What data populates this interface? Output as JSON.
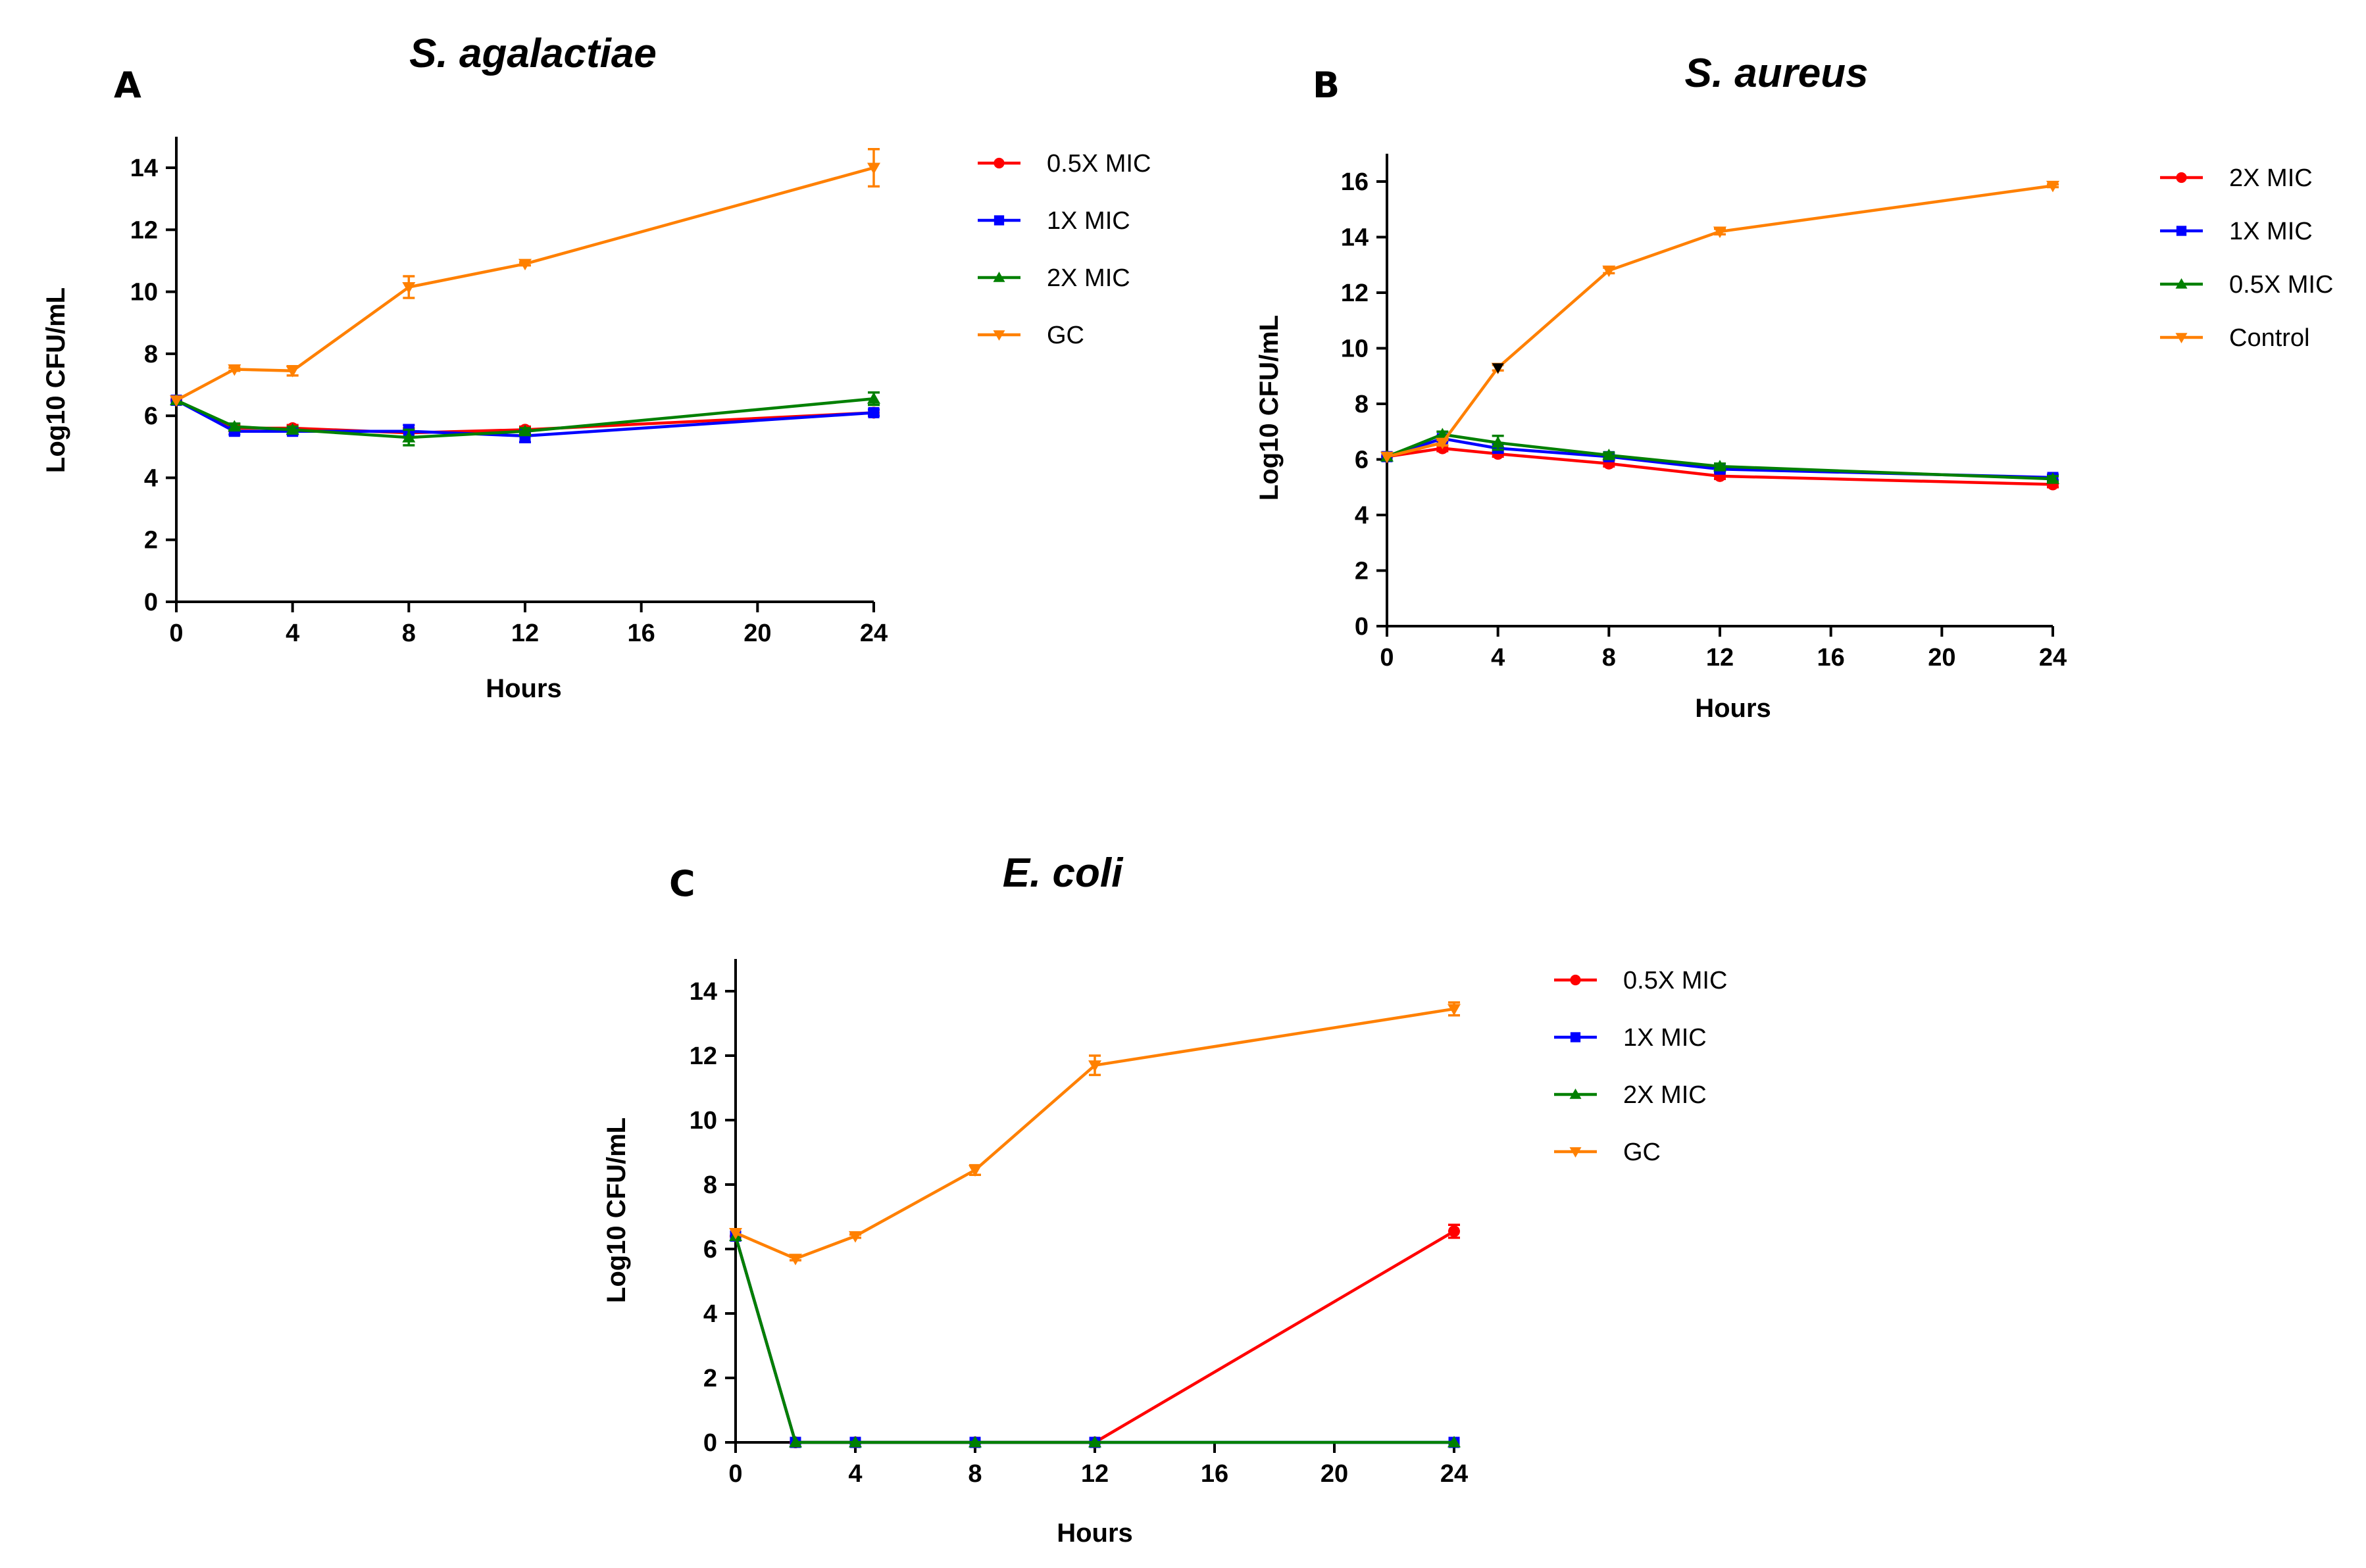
{
  "figure": {
    "description_labels": [
      "A",
      "B",
      "C"
    ]
  },
  "chart_data": [
    {
      "panel_label": "A",
      "type": "line",
      "title": "S. agalactiae",
      "xlabel": "Hours",
      "ylabel": "Log10 CFU/mL",
      "xlim": [
        0,
        24
      ],
      "ylim": [
        0,
        15
      ],
      "xticks": [
        0,
        4,
        8,
        12,
        16,
        20,
        24
      ],
      "yticks": [
        0,
        2,
        4,
        6,
        8,
        10,
        12,
        14
      ],
      "legend_position": "right",
      "series": [
        {
          "name": "0.5X MIC",
          "color": "#ff0000",
          "marker": "circle",
          "points": [
            [
              0,
              6.5
            ],
            [
              2,
              5.6
            ],
            [
              4,
              5.6
            ],
            [
              8,
              5.45
            ],
            [
              12,
              5.55
            ],
            [
              24,
              6.1
            ]
          ],
          "errors": [
            0,
            0.1,
            0.1,
            0.15,
            0.1,
            0.1
          ]
        },
        {
          "name": "1X MIC",
          "color": "#0000ff",
          "marker": "square",
          "points": [
            [
              0,
              6.5
            ],
            [
              2,
              5.5
            ],
            [
              4,
              5.5
            ],
            [
              8,
              5.5
            ],
            [
              12,
              5.35
            ],
            [
              24,
              6.1
            ]
          ],
          "errors": [
            0,
            0.1,
            0.1,
            0.2,
            0.2,
            0.1
          ]
        },
        {
          "name": "2X MIC",
          "color": "#008000",
          "marker": "triangle",
          "points": [
            [
              0,
              6.5
            ],
            [
              2,
              5.65
            ],
            [
              4,
              5.55
            ],
            [
              8,
              5.3
            ],
            [
              12,
              5.5
            ],
            [
              24,
              6.55
            ]
          ],
          "errors": [
            0,
            0.1,
            0.1,
            0.25,
            0.1,
            0.2
          ]
        },
        {
          "name": "GC",
          "color": "#ff8000",
          "marker": "triangle-down",
          "points": [
            [
              0,
              6.5
            ],
            [
              2,
              7.5
            ],
            [
              4,
              7.45
            ],
            [
              8,
              10.15
            ],
            [
              12,
              10.9
            ],
            [
              24,
              14.0
            ]
          ],
          "errors": [
            0,
            0.05,
            0.15,
            0.35,
            0.05,
            0.6
          ]
        }
      ]
    },
    {
      "panel_label": "B",
      "type": "line",
      "title": "S. aureus",
      "xlabel": "Hours",
      "ylabel": "Log10 CFU/mL",
      "xlim": [
        0,
        24
      ],
      "ylim": [
        0,
        17
      ],
      "xticks": [
        0,
        4,
        8,
        12,
        16,
        20,
        24
      ],
      "yticks": [
        0,
        2,
        4,
        6,
        8,
        10,
        12,
        14,
        16
      ],
      "legend_position": "right",
      "annotations": [
        {
          "x": 4,
          "y": 9.3,
          "marker": "triangle-down",
          "color": "#000000"
        }
      ],
      "series": [
        {
          "name": "2X MIC",
          "color": "#ff0000",
          "marker": "circle",
          "points": [
            [
              0,
              6.1
            ],
            [
              2,
              6.4
            ],
            [
              4,
              6.2
            ],
            [
              8,
              5.85
            ],
            [
              12,
              5.4
            ],
            [
              24,
              5.1
            ]
          ],
          "errors": [
            0,
            0.1,
            0.1,
            0.1,
            0.1,
            0.1
          ]
        },
        {
          "name": "1X MIC",
          "color": "#0000ff",
          "marker": "square",
          "points": [
            [
              0,
              6.1
            ],
            [
              2,
              6.75
            ],
            [
              4,
              6.4
            ],
            [
              8,
              6.1
            ],
            [
              12,
              5.65
            ],
            [
              24,
              5.35
            ]
          ],
          "errors": [
            0,
            0.1,
            0.15,
            0.1,
            0.1,
            0.1
          ]
        },
        {
          "name": "0.5X MIC",
          "color": "#008000",
          "marker": "triangle",
          "points": [
            [
              0,
              6.1
            ],
            [
              2,
              6.9
            ],
            [
              4,
              6.6
            ],
            [
              8,
              6.15
            ],
            [
              12,
              5.75
            ],
            [
              24,
              5.3
            ]
          ],
          "errors": [
            0,
            0.1,
            0.25,
            0.1,
            0.1,
            0.1
          ]
        },
        {
          "name": "Control",
          "color": "#ff8000",
          "marker": "triangle-down",
          "points": [
            [
              0,
              6.1
            ],
            [
              2,
              6.6
            ],
            [
              4,
              9.3
            ],
            [
              8,
              12.8
            ],
            [
              12,
              14.2
            ],
            [
              24,
              15.85
            ]
          ],
          "errors": [
            0,
            0.1,
            0.1,
            0.1,
            0.1,
            0.05
          ]
        }
      ]
    },
    {
      "panel_label": "C",
      "type": "line",
      "title": "E. coli",
      "xlabel": "Hours",
      "ylabel": "Log10 CFU/mL",
      "xlim": [
        0,
        24
      ],
      "ylim": [
        0,
        15
      ],
      "xticks": [
        0,
        4,
        8,
        12,
        16,
        20,
        24
      ],
      "yticks": [
        0,
        2,
        4,
        6,
        8,
        10,
        12,
        14
      ],
      "legend_position": "right",
      "series": [
        {
          "name": "0.5X MIC",
          "color": "#ff0000",
          "marker": "circle",
          "points": [
            [
              0,
              6.4
            ],
            [
              2,
              0
            ],
            [
              4,
              0
            ],
            [
              8,
              0
            ],
            [
              12,
              0
            ],
            [
              24,
              6.55
            ]
          ],
          "errors": [
            0,
            0,
            0,
            0,
            0,
            0.2
          ]
        },
        {
          "name": "1X MIC",
          "color": "#0000ff",
          "marker": "square",
          "points": [
            [
              0,
              6.4
            ],
            [
              2,
              0
            ],
            [
              4,
              0
            ],
            [
              8,
              0
            ],
            [
              12,
              0
            ],
            [
              24,
              0
            ]
          ],
          "errors": [
            0,
            0,
            0,
            0,
            0,
            0
          ]
        },
        {
          "name": "2X MIC",
          "color": "#008000",
          "marker": "triangle",
          "points": [
            [
              0,
              6.4
            ],
            [
              2,
              0
            ],
            [
              4,
              0
            ],
            [
              8,
              0
            ],
            [
              12,
              0
            ],
            [
              24,
              0
            ]
          ],
          "errors": [
            0,
            0,
            0,
            0,
            0,
            0
          ]
        },
        {
          "name": "GC",
          "color": "#ff8000",
          "marker": "triangle-down",
          "points": [
            [
              0,
              6.5
            ],
            [
              2,
              5.7
            ],
            [
              4,
              6.4
            ],
            [
              8,
              8.45
            ],
            [
              12,
              11.7
            ],
            [
              24,
              13.45
            ]
          ],
          "errors": [
            0,
            0.05,
            0.05,
            0.15,
            0.3,
            0.2
          ]
        }
      ]
    }
  ]
}
